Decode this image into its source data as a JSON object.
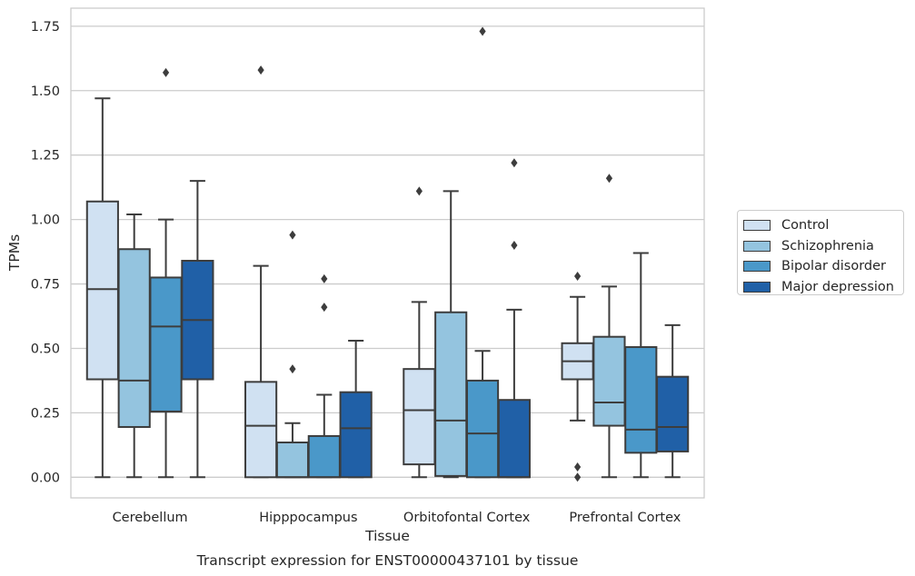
{
  "chart_data": {
    "type": "box",
    "title": "",
    "caption": "Transcript expression for ENST00000437101 by tissue",
    "xlabel": "Tissue",
    "ylabel": "TPMs",
    "ylim": [
      -0.08,
      1.82
    ],
    "yticks": [
      0.0,
      0.25,
      0.5,
      0.75,
      1.0,
      1.25,
      1.5,
      1.75
    ],
    "ytick_labels": [
      "0.00",
      "0.25",
      "0.50",
      "0.75",
      "1.00",
      "1.25",
      "1.50",
      "1.75"
    ],
    "grid": "horizontal",
    "legend_position": "right",
    "categories": [
      "Cerebellum",
      "Hipppocampus",
      "Orbitofontal Cortex",
      "Prefrontal Cortex"
    ],
    "series": [
      {
        "name": "Control",
        "color": "#d0e1f2",
        "boxes": [
          {
            "whislo": 0.0,
            "q1": 0.38,
            "med": 0.73,
            "q3": 1.07,
            "whishi": 1.47,
            "fliers": []
          },
          {
            "whislo": 0.0,
            "q1": 0.0,
            "med": 0.2,
            "q3": 0.37,
            "whishi": 0.82,
            "fliers": [
              1.58
            ]
          },
          {
            "whislo": 0.0,
            "q1": 0.05,
            "med": 0.26,
            "q3": 0.42,
            "whishi": 0.68,
            "fliers": [
              1.11
            ]
          },
          {
            "whislo": 0.22,
            "q1": 0.38,
            "med": 0.45,
            "q3": 0.52,
            "whishi": 0.7,
            "fliers": [
              0.78,
              0.04,
              0.0
            ]
          }
        ]
      },
      {
        "name": "Schizophrenia",
        "color": "#94c4df",
        "boxes": [
          {
            "whislo": 0.0,
            "q1": 0.195,
            "med": 0.375,
            "q3": 0.885,
            "whishi": 1.02,
            "fliers": []
          },
          {
            "whislo": 0.0,
            "q1": 0.0,
            "med": 0.0,
            "q3": 0.135,
            "whishi": 0.21,
            "fliers": [
              0.42,
              0.94
            ]
          },
          {
            "whislo": 0.0,
            "q1": 0.005,
            "med": 0.22,
            "q3": 0.64,
            "whishi": 1.11,
            "fliers": []
          },
          {
            "whislo": 0.0,
            "q1": 0.2,
            "med": 0.29,
            "q3": 0.545,
            "whishi": 0.74,
            "fliers": [
              1.16
            ]
          }
        ]
      },
      {
        "name": "Bipolar disorder",
        "color": "#4a98c9",
        "boxes": [
          {
            "whislo": 0.0,
            "q1": 0.255,
            "med": 0.585,
            "q3": 0.775,
            "whishi": 1.0,
            "fliers": [
              1.57
            ]
          },
          {
            "whislo": 0.0,
            "q1": 0.0,
            "med": 0.0,
            "q3": 0.16,
            "whishi": 0.32,
            "fliers": [
              0.66,
              0.77
            ]
          },
          {
            "whislo": 0.0,
            "q1": 0.0,
            "med": 0.17,
            "q3": 0.375,
            "whishi": 0.49,
            "fliers": [
              1.73
            ]
          },
          {
            "whislo": 0.0,
            "q1": 0.095,
            "med": 0.185,
            "q3": 0.505,
            "whishi": 0.87,
            "fliers": []
          }
        ]
      },
      {
        "name": "Major depression",
        "color": "#2060a7",
        "boxes": [
          {
            "whislo": 0.0,
            "q1": 0.38,
            "med": 0.61,
            "q3": 0.84,
            "whishi": 1.15,
            "fliers": []
          },
          {
            "whislo": 0.0,
            "q1": 0.0,
            "med": 0.19,
            "q3": 0.33,
            "whishi": 0.53,
            "fliers": []
          },
          {
            "whislo": 0.0,
            "q1": 0.0,
            "med": 0.0,
            "q3": 0.3,
            "whishi": 0.65,
            "fliers": [
              0.9,
              1.22
            ]
          },
          {
            "whislo": 0.0,
            "q1": 0.1,
            "med": 0.195,
            "q3": 0.39,
            "whishi": 0.59,
            "fliers": []
          }
        ]
      }
    ]
  }
}
